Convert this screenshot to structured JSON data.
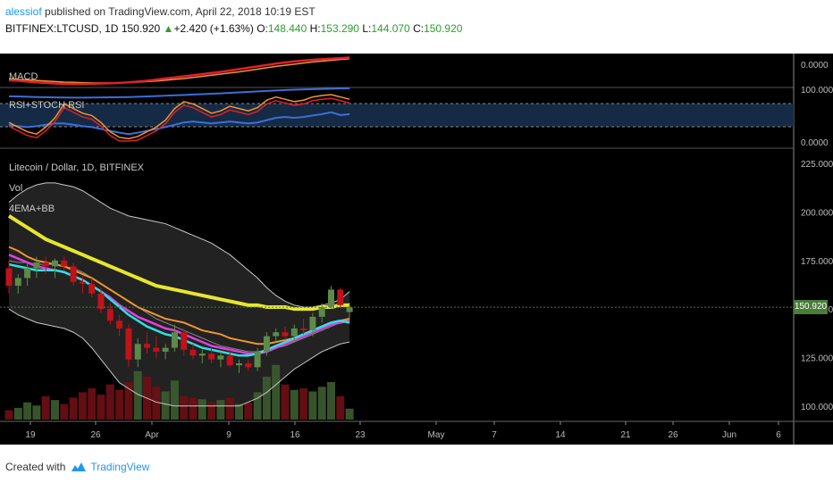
{
  "header": {
    "user": "alessiof",
    "published": " published on TradingView.com, April 22, 2018 10:19 EST",
    "symbol": "BITFINEX:LTCUSD, 1D",
    "last": "150.920",
    "change": "+2.420 (+1.63%)",
    "o_label": "O:",
    "o_value": "148.440",
    "h_label": "H:",
    "h_value": "153.290",
    "l_label": "L:",
    "l_value": "144.070",
    "c_label": "C:",
    "c_value": "150.920"
  },
  "panes": {
    "macd_label": "MACD",
    "rsi_label": "RSI+STOCH RSI",
    "main_title": "Litecoin / Dollar, 1D, BITFINEX",
    "vol_label": "Vol",
    "ema_label": "4EMA+BB"
  },
  "colors": {
    "up": "#5d8a4a",
    "down": "#c0121a",
    "ema_yellow": "#e6e62e",
    "ema_orange": "#f0952e",
    "ema_magenta": "#e040e0",
    "ema_cyan": "#2ee0e0",
    "bb": "#c8c8c8",
    "macd_red": "#e0202a",
    "macd_blue": "#3b6fd8",
    "rsi_orange": "#f0952e",
    "accent": "#2196f3"
  },
  "footer": {
    "created": "Created with",
    "brand": "TradingView"
  },
  "chart_data": {
    "type": "candlestick",
    "x_ticks": [
      "19",
      "26",
      "Apr",
      "9",
      "16",
      "23",
      "May",
      "7",
      "14",
      "21",
      "26",
      "Jun",
      "6"
    ],
    "price_axis": [
      "225.000",
      "200.000",
      "175.000",
      "150.000",
      "125.000",
      "100.000"
    ],
    "price_range": [
      93,
      232
    ],
    "macd_axis": [
      "0.0000"
    ],
    "rsi_axis": [
      "100.0000",
      "0.0000"
    ],
    "last_price_label": "150.920",
    "candles": [
      {
        "o": 171,
        "h": 175,
        "l": 158,
        "c": 162
      },
      {
        "o": 162,
        "h": 168,
        "l": 158,
        "c": 166
      },
      {
        "o": 166,
        "h": 174,
        "l": 162,
        "c": 171
      },
      {
        "o": 171,
        "h": 177,
        "l": 166,
        "c": 174
      },
      {
        "o": 174,
        "h": 177,
        "l": 168,
        "c": 172
      },
      {
        "o": 172,
        "h": 176,
        "l": 166,
        "c": 175
      },
      {
        "o": 175,
        "h": 177,
        "l": 170,
        "c": 172
      },
      {
        "o": 172,
        "h": 174,
        "l": 162,
        "c": 164
      },
      {
        "o": 164,
        "h": 167,
        "l": 158,
        "c": 163
      },
      {
        "o": 163,
        "h": 166,
        "l": 156,
        "c": 158
      },
      {
        "o": 158,
        "h": 161,
        "l": 148,
        "c": 150
      },
      {
        "o": 150,
        "h": 153,
        "l": 142,
        "c": 144
      },
      {
        "o": 144,
        "h": 147,
        "l": 136,
        "c": 140
      },
      {
        "o": 140,
        "h": 142,
        "l": 120,
        "c": 124
      },
      {
        "o": 124,
        "h": 135,
        "l": 120,
        "c": 132
      },
      {
        "o": 132,
        "h": 138,
        "l": 127,
        "c": 130
      },
      {
        "o": 130,
        "h": 136,
        "l": 125,
        "c": 128
      },
      {
        "o": 128,
        "h": 132,
        "l": 124,
        "c": 130
      },
      {
        "o": 130,
        "h": 142,
        "l": 128,
        "c": 138
      },
      {
        "o": 138,
        "h": 140,
        "l": 126,
        "c": 129
      },
      {
        "o": 129,
        "h": 132,
        "l": 124,
        "c": 126
      },
      {
        "o": 126,
        "h": 129,
        "l": 122,
        "c": 127
      },
      {
        "o": 127,
        "h": 130,
        "l": 122,
        "c": 124
      },
      {
        "o": 124,
        "h": 128,
        "l": 120,
        "c": 126
      },
      {
        "o": 126,
        "h": 129,
        "l": 120,
        "c": 121
      },
      {
        "o": 121,
        "h": 124,
        "l": 117,
        "c": 122
      },
      {
        "o": 122,
        "h": 124,
        "l": 118,
        "c": 120
      },
      {
        "o": 120,
        "h": 130,
        "l": 118,
        "c": 128
      },
      {
        "o": 128,
        "h": 138,
        "l": 126,
        "c": 136
      },
      {
        "o": 136,
        "h": 140,
        "l": 133,
        "c": 138
      },
      {
        "o": 138,
        "h": 141,
        "l": 134,
        "c": 136
      },
      {
        "o": 136,
        "h": 142,
        "l": 133,
        "c": 140
      },
      {
        "o": 140,
        "h": 145,
        "l": 137,
        "c": 139
      },
      {
        "o": 139,
        "h": 148,
        "l": 136,
        "c": 146
      },
      {
        "o": 146,
        "h": 153,
        "l": 143,
        "c": 151
      },
      {
        "o": 151,
        "h": 162,
        "l": 150,
        "c": 160
      },
      {
        "o": 160,
        "h": 161,
        "l": 151,
        "c": 152
      },
      {
        "o": 148.44,
        "h": 153.29,
        "l": 144.07,
        "c": 150.92
      }
    ],
    "volume": [
      12,
      15,
      22,
      18,
      30,
      25,
      20,
      28,
      35,
      40,
      32,
      45,
      38,
      48,
      62,
      55,
      42,
      36,
      50,
      30,
      28,
      26,
      22,
      25,
      28,
      20,
      22,
      35,
      55,
      70,
      45,
      38,
      40,
      36,
      42,
      48,
      30,
      14
    ],
    "ema_yellow": [
      198,
      195,
      192,
      189,
      186,
      184,
      182,
      180,
      178,
      176,
      174,
      172,
      170,
      168,
      166,
      164,
      162,
      161,
      160,
      159,
      158,
      157,
      156,
      155,
      154,
      153,
      152,
      152,
      151,
      151,
      151,
      150,
      150,
      150,
      151,
      151,
      152,
      152
    ],
    "ema_orange": [
      182,
      180,
      177,
      175,
      174,
      173,
      172,
      170,
      168,
      166,
      163,
      160,
      157,
      154,
      151,
      149,
      147,
      145,
      144,
      143,
      141,
      139,
      138,
      137,
      135,
      134,
      133,
      132,
      132,
      133,
      134,
      135,
      137,
      139,
      141,
      143,
      144,
      145
    ],
    "ema_magenta": [
      178,
      176,
      174,
      172,
      171,
      170,
      169,
      167,
      165,
      162,
      159,
      156,
      152,
      149,
      146,
      144,
      142,
      140,
      139,
      137,
      135,
      133,
      131,
      130,
      129,
      128,
      127,
      127,
      128,
      130,
      132,
      134,
      136,
      138,
      140,
      142,
      143,
      144
    ],
    "ema_cyan": [
      173,
      172,
      171,
      170,
      170,
      170,
      169,
      167,
      165,
      162,
      159,
      155,
      151,
      147,
      144,
      141,
      139,
      137,
      136,
      134,
      132,
      130,
      129,
      128,
      127,
      126,
      126,
      127,
      129,
      131,
      133,
      135,
      137,
      139,
      141,
      143,
      144,
      143
    ],
    "bb_upper": [
      205,
      209,
      212,
      214,
      215,
      215,
      214,
      213,
      211,
      208,
      205,
      202,
      200,
      198,
      197,
      196,
      195,
      194,
      192,
      190,
      188,
      186,
      184,
      181,
      178,
      174,
      170,
      166,
      161,
      157,
      154,
      152,
      151,
      151,
      152,
      153,
      155,
      159
    ],
    "bb_mid": [
      175,
      174,
      174,
      173,
      173,
      173,
      172,
      171,
      169,
      166,
      163,
      160,
      157,
      154,
      151,
      148,
      145,
      143,
      141,
      139,
      137,
      135,
      133,
      131,
      130,
      129,
      128,
      128,
      129,
      130,
      131,
      133,
      135,
      137,
      139,
      141,
      143,
      145
    ],
    "bb_lower": [
      150,
      147,
      145,
      143,
      142,
      141,
      140,
      138,
      135,
      130,
      124,
      118,
      112,
      109,
      106,
      104,
      102,
      101,
      100,
      100,
      100,
      100,
      100,
      100,
      100,
      100,
      102,
      104,
      107,
      111,
      115,
      119,
      122,
      125,
      128,
      130,
      132,
      133
    ],
    "macd_line": [
      0.2,
      0.18,
      0.15,
      0.12,
      0.1,
      0.08,
      0.07,
      0.06,
      0.06,
      0.07,
      0.08,
      0.09,
      0.1,
      0.12,
      0.15,
      0.18,
      0.22,
      0.26,
      0.3,
      0.34,
      0.38,
      0.42,
      0.46,
      0.5,
      0.55,
      0.6,
      0.65,
      0.7,
      0.75,
      0.8,
      0.84,
      0.88,
      0.91,
      0.94,
      0.96,
      0.98,
      1.0,
      1.02
    ],
    "macd_signal": [
      0.25,
      0.23,
      0.21,
      0.19,
      0.17,
      0.15,
      0.13,
      0.12,
      0.11,
      0.1,
      0.1,
      0.1,
      0.11,
      0.12,
      0.13,
      0.15,
      0.17,
      0.2,
      0.23,
      0.26,
      0.3,
      0.34,
      0.38,
      0.42,
      0.46,
      0.5,
      0.55,
      0.6,
      0.65,
      0.7,
      0.74,
      0.78,
      0.82,
      0.86,
      0.89,
      0.92,
      0.95,
      0.98
    ],
    "rsi_blue": [
      35,
      32,
      30,
      32,
      35,
      38,
      38,
      35,
      32,
      30,
      26,
      22,
      18,
      15,
      18,
      22,
      26,
      30,
      35,
      40,
      42,
      40,
      38,
      40,
      42,
      40,
      38,
      40,
      45,
      50,
      52,
      50,
      52,
      55,
      58,
      62,
      56,
      58
    ],
    "rsi_orange": [
      40,
      30,
      20,
      15,
      30,
      50,
      80,
      70,
      60,
      55,
      40,
      20,
      8,
      5,
      10,
      20,
      30,
      45,
      70,
      85,
      80,
      70,
      60,
      65,
      75,
      70,
      65,
      72,
      88,
      95,
      90,
      85,
      88,
      95,
      98,
      100,
      95,
      90
    ]
  }
}
